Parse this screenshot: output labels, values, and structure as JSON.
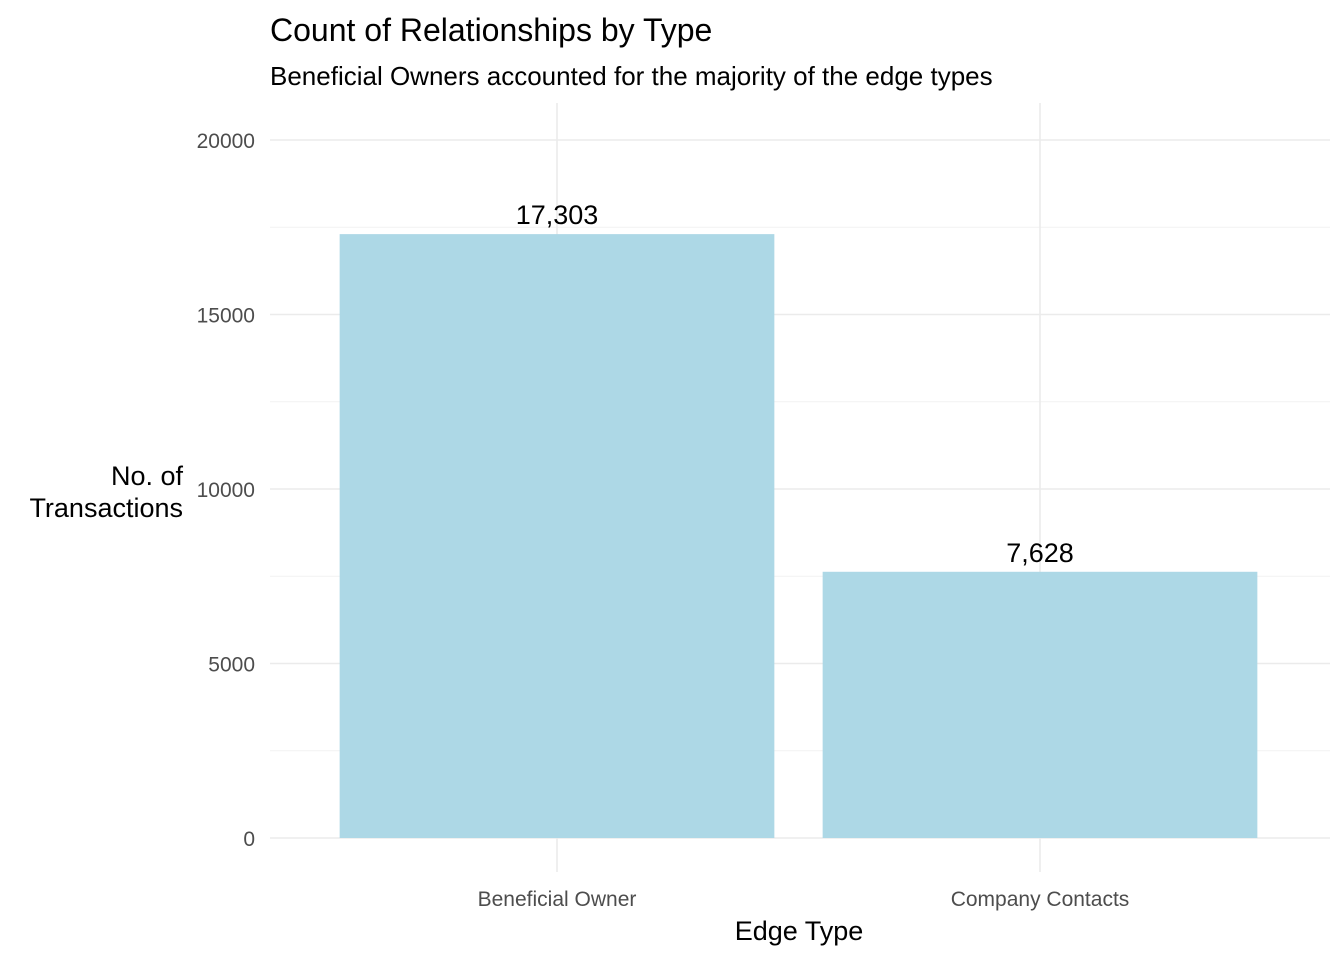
{
  "chart_data": {
    "type": "bar",
    "title": "Count of Relationships by Type",
    "subtitle": "Beneficial Owners accounted for the majority of the edge types",
    "xlabel": "Edge Type",
    "ylabel_lines": [
      "No. of",
      "Transactions"
    ],
    "categories": [
      "Beneficial Owner",
      "Company Contacts"
    ],
    "values": [
      17303,
      7628
    ],
    "value_labels": [
      "17,303",
      "7,628"
    ],
    "ylim": [
      0,
      20000
    ],
    "yticks": [
      0,
      5000,
      10000,
      15000,
      20000
    ],
    "ytick_labels": [
      "0",
      "5000",
      "10000",
      "15000",
      "20000"
    ],
    "grid": true,
    "bar_color": "#add8e6"
  }
}
